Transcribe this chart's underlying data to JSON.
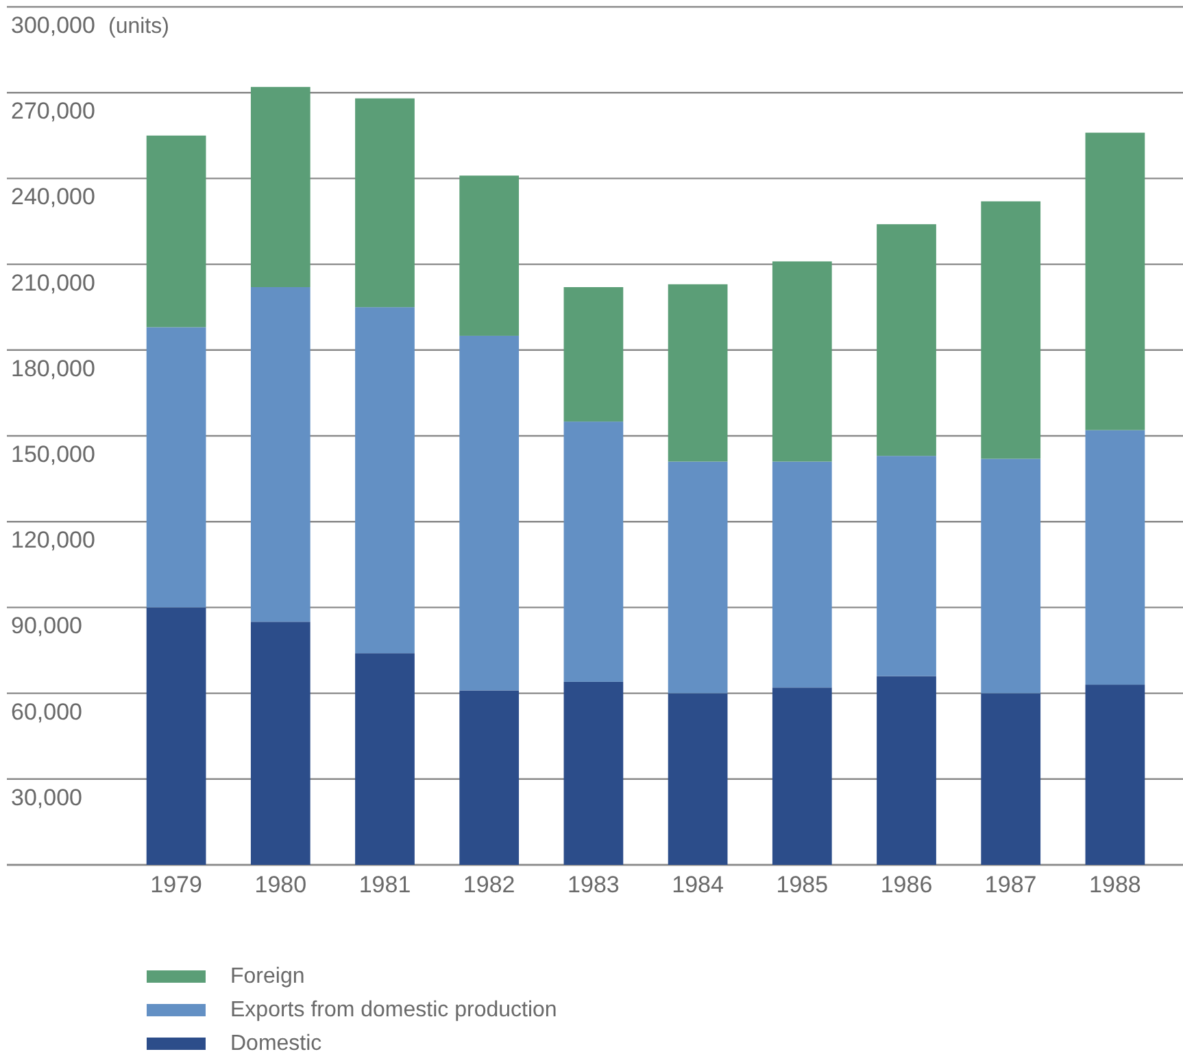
{
  "chart_data": {
    "type": "bar",
    "stacked": true,
    "ylabel": "(units)",
    "categories": [
      "1979",
      "1980",
      "1981",
      "1982",
      "1983",
      "1984",
      "1985",
      "1986",
      "1987",
      "1988"
    ],
    "series": [
      {
        "name": "Domestic",
        "color": "#2c4d8a",
        "values": [
          90000,
          85000,
          74000,
          61000,
          64000,
          60000,
          62000,
          66000,
          60000,
          63000
        ]
      },
      {
        "name": "Exports from domestic production",
        "color": "#6390c4",
        "values": [
          98000,
          117000,
          121000,
          124000,
          91000,
          81000,
          79000,
          77000,
          82000,
          89000
        ]
      },
      {
        "name": "Foreign",
        "color": "#5b9e77",
        "values": [
          67000,
          70000,
          73000,
          56000,
          47000,
          62000,
          70000,
          81000,
          90000,
          104000
        ]
      }
    ],
    "ylim": [
      0,
      300000
    ],
    "yticks": [
      {
        "value": 0,
        "label": null
      },
      {
        "value": 30000,
        "label": "30,000"
      },
      {
        "value": 60000,
        "label": "60,000"
      },
      {
        "value": 90000,
        "label": "90,000"
      },
      {
        "value": 120000,
        "label": "120,000"
      },
      {
        "value": 150000,
        "label": "150,000"
      },
      {
        "value": 180000,
        "label": "180,000"
      },
      {
        "value": 210000,
        "label": "210,000"
      },
      {
        "value": 240000,
        "label": "240,000"
      },
      {
        "value": 270000,
        "label": "270,000"
      },
      {
        "value": 300000,
        "label": "300,000"
      }
    ],
    "grid": "y",
    "legend": "bottom left"
  }
}
